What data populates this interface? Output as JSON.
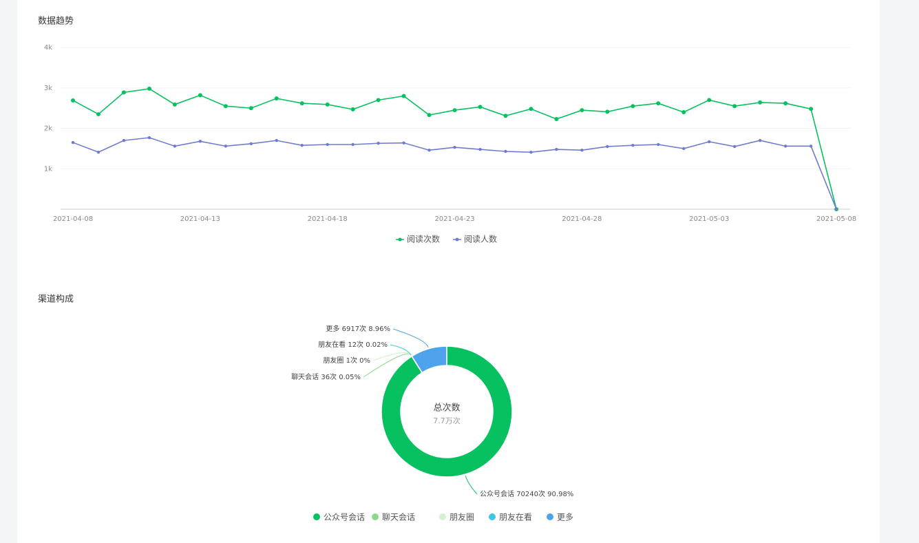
{
  "chart_data": [
    {
      "type": "line",
      "title": "数据趋势",
      "categories": [
        "2021-04-08",
        null,
        null,
        null,
        null,
        "2021-04-13",
        null,
        null,
        null,
        null,
        "2021-04-18",
        null,
        null,
        null,
        null,
        "2021-04-23",
        null,
        null,
        null,
        null,
        "2021-04-28",
        null,
        null,
        null,
        null,
        "2021-05-03",
        null,
        null,
        null,
        null,
        "2021-05-08"
      ],
      "series": [
        {
          "name": "阅读次数",
          "color": "#07c160",
          "values": [
            2690,
            2350,
            2890,
            2980,
            2590,
            2820,
            2550,
            2500,
            2740,
            2620,
            2590,
            2470,
            2700,
            2800,
            2330,
            2450,
            2530,
            2310,
            2480,
            2230,
            2450,
            2410,
            2550,
            2620,
            2400,
            2700,
            2550,
            2640,
            2620,
            2480,
            0
          ]
        },
        {
          "name": "阅读人数",
          "color": "#6f7bd0",
          "values": [
            1650,
            1410,
            1700,
            1770,
            1560,
            1680,
            1560,
            1620,
            1700,
            1580,
            1600,
            1600,
            1630,
            1640,
            1460,
            1530,
            1480,
            1430,
            1410,
            1480,
            1460,
            1550,
            1580,
            1600,
            1500,
            1670,
            1550,
            1700,
            1560,
            1560,
            0
          ]
        }
      ],
      "ylim": [
        0,
        4000
      ],
      "yticks": [
        {
          "value": 1000,
          "label": "1k"
        },
        {
          "value": 2000,
          "label": "2k"
        },
        {
          "value": 3000,
          "label": "3k"
        },
        {
          "value": 4000,
          "label": "4k"
        }
      ],
      "grid": true,
      "legend": "bottom"
    },
    {
      "type": "pie",
      "title": "渠道构成",
      "center_title": "总次数",
      "center_label": "7.7万次",
      "categories": [
        "公众号会话",
        "聊天会话",
        "朋友圈",
        "朋友在看",
        "更多"
      ],
      "values": [
        70240,
        36,
        1,
        12,
        6917
      ],
      "value_labels": [
        "70240次 90.98%",
        "36次 0.05%",
        "1次 0%",
        "12次 0.02%",
        "6917次 8.96%"
      ],
      "colors": [
        "#07c160",
        "#91d68f",
        "#d4f0cf",
        "#3ec7e0",
        "#4fa3ec"
      ],
      "donut": true,
      "legend": "bottom"
    }
  ]
}
